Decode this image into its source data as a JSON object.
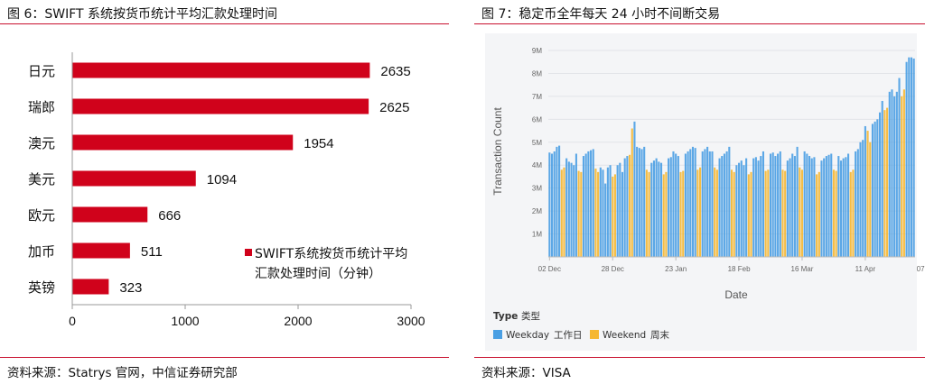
{
  "left": {
    "title": "图 6：SWIFT 系统按货币统计平均汇款处理时间",
    "source": "资料来源：Statrys 官网，中信证券研究部",
    "legend_line1": "SWIFT系统按货币统计平均",
    "legend_line2": "汇款处理时间（分钟）",
    "colors": {
      "bar": "#d0021b",
      "rule": "#c8102e"
    }
  },
  "right": {
    "title": "图 7：稳定币全年每天 24 小时不间断交易",
    "source": "资料来源：VISA",
    "legend_title_en": "Type",
    "legend_title_cn": "类型",
    "legend_items": [
      {
        "label_en": "Weekday",
        "label_cn": "工作日",
        "color": "#4a9fe3"
      },
      {
        "label_en": "Weekend",
        "label_cn": "周末",
        "color": "#f5b731"
      }
    ]
  },
  "chart_data": [
    {
      "type": "bar",
      "orientation": "horizontal",
      "categories": [
        "日元",
        "瑞郎",
        "澳元",
        "美元",
        "欧元",
        "加币",
        "英镑"
      ],
      "series": [
        {
          "name": "SWIFT系统按货币统计平均汇款处理时间（分钟）",
          "values": [
            2635,
            2625,
            1954,
            1094,
            666,
            511,
            323
          ]
        }
      ],
      "xlim": [
        0,
        3000
      ],
      "xticks": [
        0,
        1000,
        2000,
        3000
      ],
      "legend": "right"
    },
    {
      "type": "bar",
      "xlabel": "Date",
      "ylabel": "Transaction Count",
      "ylim": [
        0,
        9000000
      ],
      "yticks": [
        "1M",
        "2M",
        "3M",
        "4M",
        "5M",
        "6M",
        "7M",
        "8M",
        "9M"
      ],
      "xticks": [
        "02 Dec",
        "28 Dec",
        "23 Jan",
        "18 Feb",
        "16 Mar",
        "11 Apr",
        "07 May"
      ],
      "start_date": "2024-12-02",
      "series": [
        {
          "name": "Weekday"
        },
        {
          "name": "Weekend"
        }
      ],
      "daily_values": [
        4.55,
        4.5,
        4.6,
        4.8,
        4.85,
        3.8,
        3.9,
        4.3,
        4.15,
        4.1,
        4.0,
        4.5,
        3.75,
        3.7,
        4.4,
        4.5,
        4.6,
        4.65,
        4.7,
        3.85,
        3.7,
        3.9,
        3.8,
        3.2,
        3.9,
        4.0,
        3.5,
        3.6,
        4.0,
        4.1,
        3.7,
        4.3,
        4.4,
        4.45,
        5.6,
        5.9,
        4.8,
        4.75,
        4.7,
        4.8,
        3.8,
        3.7,
        4.1,
        4.2,
        4.3,
        4.15,
        4.1,
        3.6,
        3.7,
        4.3,
        4.35,
        4.6,
        4.5,
        4.4,
        3.7,
        3.75,
        4.5,
        4.6,
        4.7,
        4.8,
        4.75,
        3.8,
        3.9,
        4.6,
        4.7,
        4.8,
        4.6,
        4.6,
        3.9,
        3.8,
        4.3,
        4.4,
        4.5,
        4.6,
        4.8,
        3.8,
        3.7,
        4.0,
        4.1,
        4.2,
        4.0,
        4.3,
        3.6,
        3.7,
        4.3,
        4.35,
        4.2,
        4.4,
        4.6,
        3.75,
        3.8,
        4.5,
        4.55,
        4.4,
        4.5,
        4.6,
        3.8,
        3.75,
        4.2,
        4.3,
        4.5,
        4.4,
        4.8,
        3.9,
        3.8,
        4.6,
        4.5,
        4.4,
        4.3,
        4.35,
        3.6,
        3.7,
        4.2,
        4.3,
        4.4,
        4.45,
        4.5,
        3.8,
        3.75,
        4.4,
        4.2,
        4.3,
        4.35,
        4.5,
        3.7,
        3.8,
        4.6,
        4.7,
        5.0,
        5.1,
        5.7,
        5.5,
        5.0,
        5.8,
        5.9,
        6.0,
        6.3,
        6.8,
        6.4,
        6.5,
        7.2,
        7.3,
        7.0,
        7.2,
        7.8,
        7.0,
        7.3,
        8.5,
        8.7,
        8.7,
        8.65
      ]
    }
  ]
}
